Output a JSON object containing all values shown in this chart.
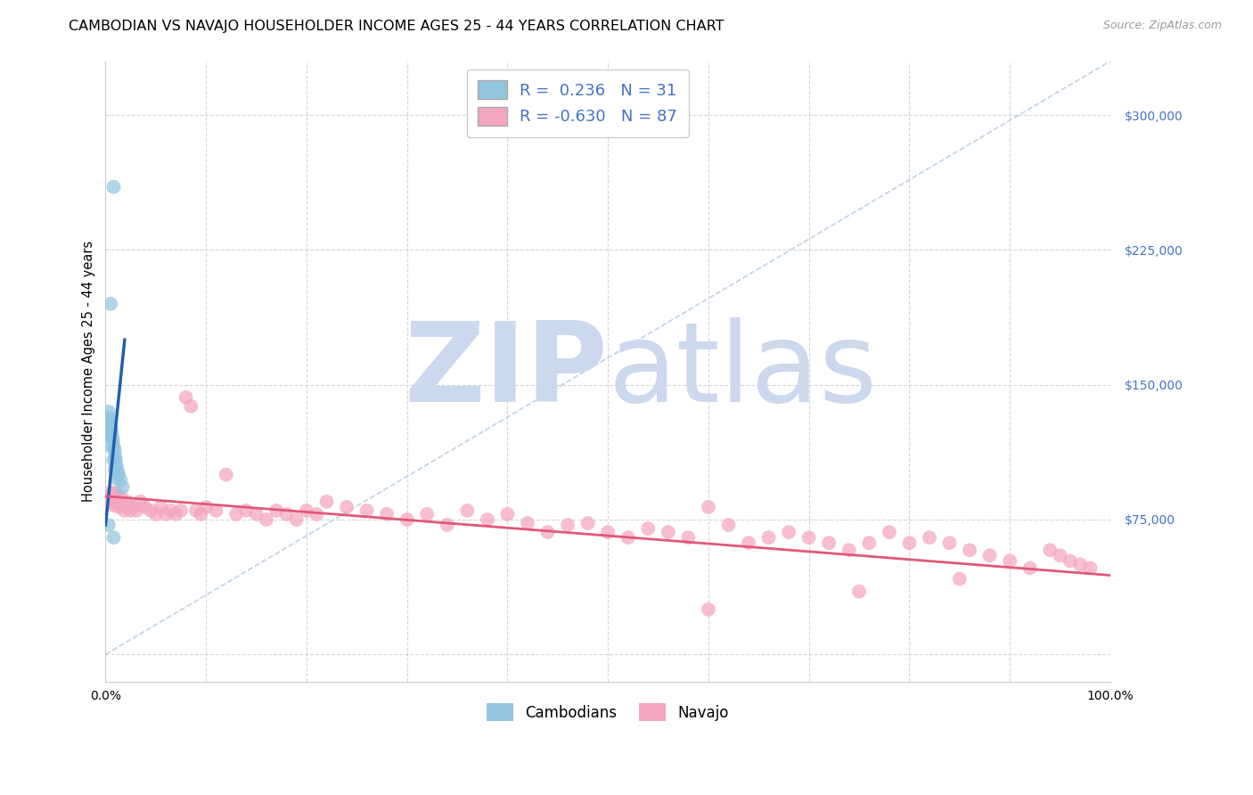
{
  "title": "CAMBODIAN VS NAVAJO HOUSEHOLDER INCOME AGES 25 - 44 YEARS CORRELATION CHART",
  "source": "Source: ZipAtlas.com",
  "ylabel": "Householder Income Ages 25 - 44 years",
  "xlim": [
    0.0,
    100.0
  ],
  "ylim": [
    -15000,
    330000
  ],
  "yticks": [
    0,
    75000,
    150000,
    225000,
    300000
  ],
  "xticks": [
    0,
    10,
    20,
    30,
    40,
    50,
    60,
    70,
    80,
    90,
    100
  ],
  "cambodian_R": "0.236",
  "cambodian_N": "31",
  "navajo_R": "-0.630",
  "navajo_N": "87",
  "cambodian_color": "#92c5de",
  "navajo_color": "#f4a6be",
  "cambodian_line_color": "#2060b0",
  "navajo_line_color": "#e05878",
  "ref_line_color": "#b8cce4",
  "watermark_zip_color": "#ccd8ee",
  "watermark_atlas_color": "#ccd8ee",
  "tick_color_y": "#4472c4",
  "background_color": "#ffffff",
  "grid_color": "#d5d5d5",
  "title_fontsize": 11.5,
  "axis_label_fontsize": 10.5,
  "tick_fontsize": 10,
  "legend_fontsize": 13,
  "source_fontsize": 9,
  "cam_x": [
    0.15,
    0.2,
    0.25,
    0.3,
    0.35,
    0.4,
    0.45,
    0.5,
    0.55,
    0.6,
    0.65,
    0.7,
    0.75,
    0.8,
    0.85,
    0.9,
    0.95,
    1.0,
    1.1,
    1.2,
    1.3,
    1.5,
    1.7,
    0.5,
    0.6,
    0.7,
    0.8,
    0.9,
    1.0,
    0.8,
    0.3
  ],
  "cam_y": [
    128000,
    125000,
    130000,
    135000,
    132000,
    130000,
    128000,
    127000,
    125000,
    124000,
    122000,
    120000,
    118000,
    260000,
    115000,
    113000,
    110000,
    108000,
    105000,
    102000,
    100000,
    97000,
    93000,
    195000,
    120000,
    115000,
    108000,
    103000,
    98000,
    65000,
    72000
  ],
  "nav_x": [
    0.3,
    0.5,
    0.6,
    0.7,
    0.8,
    0.9,
    1.0,
    1.1,
    1.2,
    1.3,
    1.5,
    1.7,
    1.9,
    2.1,
    2.3,
    2.5,
    2.8,
    3.1,
    3.5,
    3.9,
    4.5,
    5.0,
    5.5,
    6.0,
    6.5,
    7.0,
    7.5,
    8.0,
    8.5,
    9.0,
    9.5,
    10.0,
    11.0,
    12.0,
    13.0,
    14.0,
    15.0,
    16.0,
    17.0,
    18.0,
    19.0,
    20.0,
    21.0,
    22.0,
    24.0,
    26.0,
    28.0,
    30.0,
    32.0,
    34.0,
    36.0,
    38.0,
    40.0,
    42.0,
    44.0,
    46.0,
    48.0,
    50.0,
    52.0,
    54.0,
    56.0,
    58.0,
    60.0,
    62.0,
    64.0,
    66.0,
    68.0,
    70.0,
    72.0,
    74.0,
    76.0,
    78.0,
    80.0,
    82.0,
    84.0,
    86.0,
    88.0,
    90.0,
    92.0,
    94.0,
    95.0,
    96.0,
    97.0,
    98.0,
    60.0,
    75.0,
    85.0
  ],
  "nav_y": [
    88000,
    85000,
    90000,
    87000,
    83000,
    86000,
    90000,
    88000,
    85000,
    82000,
    88000,
    83000,
    80000,
    85000,
    82000,
    80000,
    82000,
    80000,
    85000,
    82000,
    80000,
    78000,
    82000,
    78000,
    80000,
    78000,
    80000,
    143000,
    138000,
    80000,
    78000,
    82000,
    80000,
    100000,
    78000,
    80000,
    78000,
    75000,
    80000,
    78000,
    75000,
    80000,
    78000,
    85000,
    82000,
    80000,
    78000,
    75000,
    78000,
    72000,
    80000,
    75000,
    78000,
    73000,
    68000,
    72000,
    73000,
    68000,
    65000,
    70000,
    68000,
    65000,
    82000,
    72000,
    62000,
    65000,
    68000,
    65000,
    62000,
    58000,
    62000,
    68000,
    62000,
    65000,
    62000,
    58000,
    55000,
    52000,
    48000,
    58000,
    55000,
    52000,
    50000,
    48000,
    25000,
    35000,
    42000
  ],
  "cam_line_x": [
    0.0,
    1.9
  ],
  "cam_line_y": [
    72000,
    175000
  ],
  "nav_line_x": [
    0.0,
    100.0
  ],
  "nav_line_y": [
    88000,
    44000
  ],
  "ref_line_x": [
    0.0,
    100.0
  ],
  "ref_line_y": [
    0,
    330000
  ]
}
